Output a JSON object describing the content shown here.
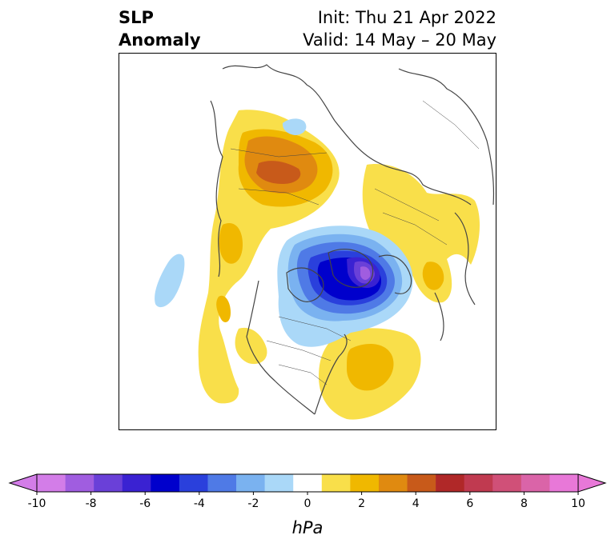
{
  "title": {
    "left_line1": "SLP",
    "left_line2": "Anomaly",
    "right_line1": "Init: Thu 21 Apr 2022",
    "right_line2": "Valid: 14 May – 20 May"
  },
  "colorbar": {
    "unit": "hPa",
    "ticks": [
      "-10",
      "-8",
      "-6",
      "-4",
      "-2",
      "0",
      "2",
      "4",
      "6",
      "8",
      "10"
    ],
    "colors": [
      "#d37de8",
      "#a05de0",
      "#6a40d8",
      "#3a22d2",
      "#0000cc",
      "#2a40dc",
      "#4f7ae6",
      "#7ab2f0",
      "#aad8f8",
      "#ffffff",
      "#f9df4a",
      "#f0b800",
      "#e08a10",
      "#c85a1a",
      "#b02828",
      "#c03a50",
      "#d05078",
      "#da64a8",
      "#e878d8"
    ],
    "extend_low_color": "#d37de8",
    "extend_high_color": "#e878d8"
  },
  "colors": {
    "land_outline": "#444444",
    "frame": "#000000"
  }
}
